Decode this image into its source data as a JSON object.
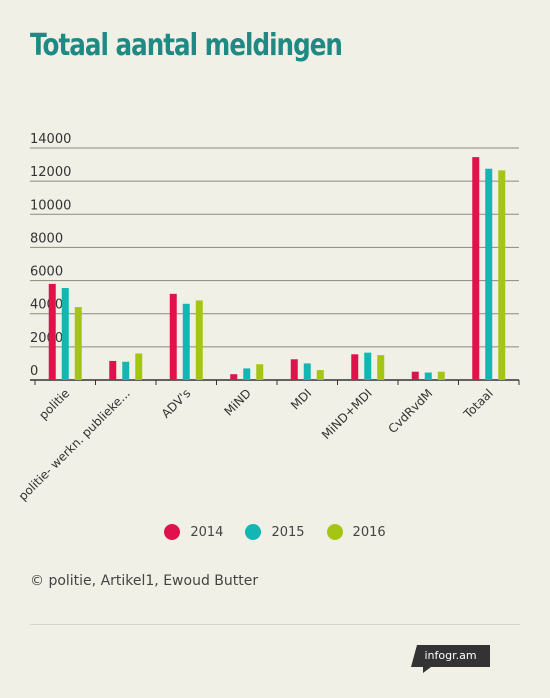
{
  "title": "Totaal aantal meldingen",
  "chart_data": {
    "type": "bar",
    "title": "Totaal aantal meldingen",
    "categories": [
      "politie",
      "politie- werkn. publieke...",
      "ADV's",
      "MiND",
      "MDI",
      "MiND+MDI",
      "CvdRvdM",
      "Totaal"
    ],
    "series": [
      {
        "name": "2014",
        "color": "#e0124b",
        "values": [
          5800,
          1150,
          5200,
          350,
          1250,
          1550,
          500,
          13450
        ]
      },
      {
        "name": "2015",
        "color": "#14b6b4",
        "values": [
          5550,
          1100,
          4600,
          700,
          1000,
          1650,
          450,
          12750
        ]
      },
      {
        "name": "2016",
        "color": "#a5c514",
        "values": [
          4400,
          1600,
          4800,
          950,
          600,
          1500,
          500,
          12650
        ]
      }
    ],
    "ylim": [
      0,
      14000
    ],
    "yticks": [
      0,
      2000,
      4000,
      6000,
      8000,
      10000,
      12000,
      14000
    ],
    "xlabel": "",
    "ylabel": "",
    "grid": true,
    "legend_position": "bottom"
  },
  "source": "© politie, Artikel1, Ewoud Butter",
  "logo": "infogr.am"
}
